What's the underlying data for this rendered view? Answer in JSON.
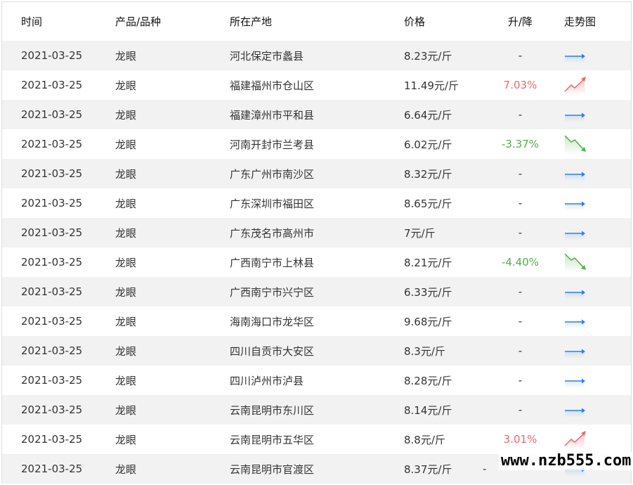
{
  "headers": [
    "时间",
    "产品/品种",
    "所在产地",
    "价格",
    "升/降",
    "走势图"
  ],
  "colors": {
    "up": "#f0666a",
    "down": "#52b04a",
    "flat": "#2a7ef5"
  },
  "rows": [
    {
      "date": "2021-03-25",
      "product": "龙眼",
      "origin": "河北保定市蠡县",
      "price": "8.23元/斤",
      "change": "-",
      "trend": "flat"
    },
    {
      "date": "2021-03-25",
      "product": "龙眼",
      "origin": "福建福州市仓山区",
      "price": "11.49元/斤",
      "change": "7.03%",
      "trend": "up"
    },
    {
      "date": "2021-03-25",
      "product": "龙眼",
      "origin": "福建漳州市平和县",
      "price": "6.64元/斤",
      "change": "-",
      "trend": "flat"
    },
    {
      "date": "2021-03-25",
      "product": "龙眼",
      "origin": "河南开封市兰考县",
      "price": "6.02元/斤",
      "change": "-3.37%",
      "trend": "down"
    },
    {
      "date": "2021-03-25",
      "product": "龙眼",
      "origin": "广东广州市南沙区",
      "price": "8.32元/斤",
      "change": "-",
      "trend": "flat"
    },
    {
      "date": "2021-03-25",
      "product": "龙眼",
      "origin": "广东深圳市福田区",
      "price": "8.65元/斤",
      "change": "-",
      "trend": "flat"
    },
    {
      "date": "2021-03-25",
      "product": "龙眼",
      "origin": "广东茂名市高州市",
      "price": "7元/斤",
      "change": "-",
      "trend": "flat"
    },
    {
      "date": "2021-03-25",
      "product": "龙眼",
      "origin": "广西南宁市上林县",
      "price": "8.21元/斤",
      "change": "-4.40%",
      "trend": "down"
    },
    {
      "date": "2021-03-25",
      "product": "龙眼",
      "origin": "广西南宁市兴宁区",
      "price": "6.33元/斤",
      "change": "-",
      "trend": "flat"
    },
    {
      "date": "2021-03-25",
      "product": "龙眼",
      "origin": "海南海口市龙华区",
      "price": "9.68元/斤",
      "change": "-",
      "trend": "flat"
    },
    {
      "date": "2021-03-25",
      "product": "龙眼",
      "origin": "四川自贡市大安区",
      "price": "8.3元/斤",
      "change": "-",
      "trend": "flat"
    },
    {
      "date": "2021-03-25",
      "product": "龙眼",
      "origin": "四川泸州市泸县",
      "price": "8.28元/斤",
      "change": "-",
      "trend": "flat"
    },
    {
      "date": "2021-03-25",
      "product": "龙眼",
      "origin": "云南昆明市东川区",
      "price": "8.14元/斤",
      "change": "-",
      "trend": "flat"
    },
    {
      "date": "2021-03-25",
      "product": "龙眼",
      "origin": "云南昆明市五华区",
      "price": "8.8元/斤",
      "change": "3.01%",
      "trend": "up"
    },
    {
      "date": "2021-03-25",
      "product": "龙眼",
      "origin": "云南昆明市官渡区",
      "price": "8.37元/斤",
      "change": "-",
      "trend": "flat"
    }
  ],
  "watermark": "www.nzb555.com"
}
